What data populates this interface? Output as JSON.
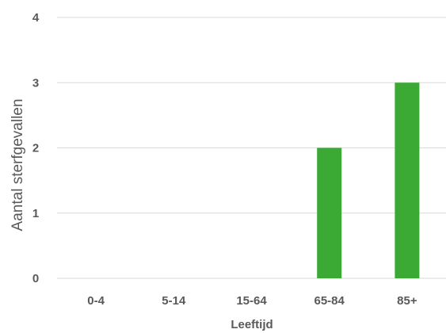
{
  "chart_data": {
    "type": "bar",
    "categories": [
      "0-4",
      "5-14",
      "15-64",
      "65-84",
      "85+"
    ],
    "values": [
      0,
      0,
      0,
      2,
      3
    ],
    "xlabel": "Leeftijd",
    "ylabel": "Aantal sterfgevallen",
    "ylim": [
      0,
      4
    ],
    "yticks": [
      0,
      1,
      2,
      3,
      4
    ],
    "grid": true,
    "legend": "none",
    "bar_color": "#3aaa35"
  }
}
